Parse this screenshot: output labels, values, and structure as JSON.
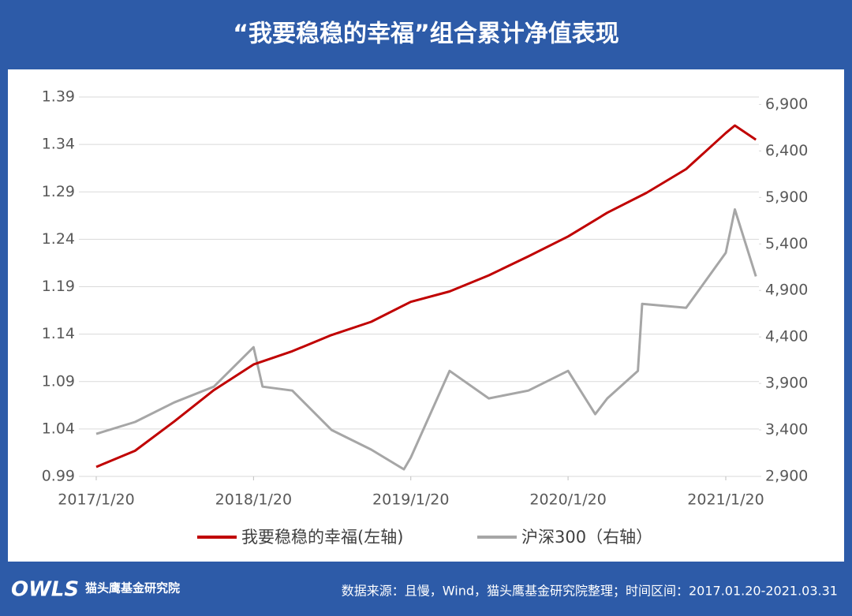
{
  "chart_data": {
    "type": "line",
    "title": "“我要稳稳的幸福”组合累计净值表现",
    "source": "数据来源：且慢，Wind，猫头鹰基金研究院整理；时间区间：2017.01.20-2021.03.31",
    "logo_text": "OWLS",
    "logo_name": "猫头鹰基金研究院",
    "ylim": [
      0.99,
      1.39
    ],
    "yticks": [
      0.99,
      1.04,
      1.09,
      1.14,
      1.19,
      1.24,
      1.29,
      1.34,
      1.39
    ],
    "y2lim": [
      2900,
      6980
    ],
    "y2ticks": [
      {
        "value": 2900,
        "label": "2,900"
      },
      {
        "value": 3400,
        "label": "3,400"
      },
      {
        "value": 3900,
        "label": "3,900"
      },
      {
        "value": 4400,
        "label": "4,400"
      },
      {
        "value": 4900,
        "label": "4,900"
      },
      {
        "value": 5400,
        "label": "5,400"
      },
      {
        "value": 5900,
        "label": "5,900"
      },
      {
        "value": 6400,
        "label": "6,400"
      },
      {
        "value": 6900,
        "label": "6,900"
      }
    ],
    "xticks": [
      "2017/1/20",
      "2018/1/20",
      "2019/1/20",
      "2020/1/20",
      "2021/1/20"
    ],
    "grid": true,
    "legend": "bottom",
    "series": [
      {
        "name": "我要稳稳的幸福(左轴)",
        "color": "#c00000",
        "axis": "y",
        "x": [
          "2017/1/20",
          "2017/4/20",
          "2017/7/20",
          "2017/10/20",
          "2018/1/20",
          "2018/4/20",
          "2018/7/20",
          "2018/10/20",
          "2019/1/20",
          "2019/4/20",
          "2019/7/20",
          "2019/10/20",
          "2020/1/20",
          "2020/4/20",
          "2020/7/20",
          "2020/10/20",
          "2021/1/20",
          "2021/2/10",
          "2021/3/31"
        ],
        "values": [
          1.0,
          1.017,
          1.048,
          1.081,
          1.108,
          1.122,
          1.139,
          1.153,
          1.174,
          1.185,
          1.202,
          1.222,
          1.243,
          1.268,
          1.289,
          1.314,
          1.352,
          1.36,
          1.345
        ]
      },
      {
        "name": "沪深300（右轴）",
        "color": "#a6a6a6",
        "axis": "y2",
        "x": [
          "2017/1/20",
          "2017/4/20",
          "2017/7/20",
          "2017/10/20",
          "2018/1/20",
          "2018/2/10",
          "2018/4/20",
          "2018/7/20",
          "2018/10/20",
          "2019/1/4",
          "2019/1/20",
          "2019/4/20",
          "2019/7/20",
          "2019/10/20",
          "2020/1/20",
          "2020/3/23",
          "2020/4/20",
          "2020/6/30",
          "2020/7/10",
          "2020/10/20",
          "2021/1/20",
          "2021/2/10",
          "2021/3/31"
        ],
        "values": [
          3357,
          3485,
          3696,
          3865,
          4289,
          3865,
          3823,
          3400,
          3188,
          2976,
          3103,
          4035,
          3739,
          3823,
          4035,
          3569,
          3739,
          4035,
          4755,
          4713,
          5305,
          5771,
          5051
        ]
      }
    ]
  }
}
